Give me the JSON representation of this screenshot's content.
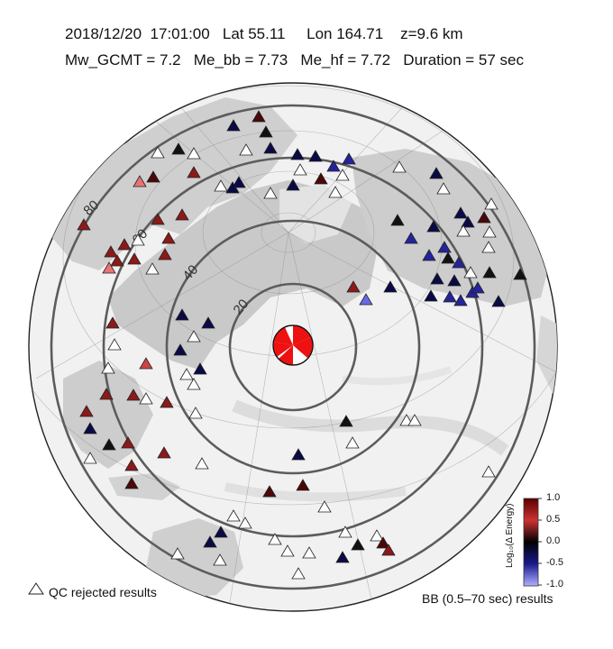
{
  "header": {
    "line1": "2018/12/20  17:01:00   Lat 55.11     Lon 164.71    z=9.6 km",
    "line2": "Mw_GCMT = 7.2   Me_bb = 7.73   Me_hf = 7.72   Duration = 57 sec"
  },
  "map": {
    "range_labels": [
      "20",
      "40",
      "60",
      "80"
    ],
    "station_symbol": "triangle",
    "mechanism_colors": {
      "compression": "#ee1111",
      "tension": "#ffffff"
    },
    "marker_colors": {
      "strong_red": "#c0392b",
      "red": "#8b1a1a",
      "dark_red": "#4a0808",
      "black": "#111111",
      "dark_blue": "#0a0a45",
      "blue": "#24249a",
      "light_blue": "#6a6ae6",
      "pink": "#e97373",
      "rejected": "#ffffff"
    }
  },
  "legend": {
    "qc_label": "QC rejected results",
    "bb_label": "BB (0.5–70 sec) results"
  },
  "colorbar": {
    "title": "Log₁₀(Δ Energy)",
    "ticks": [
      "1.0",
      "0.5",
      "0.0",
      "-0.5",
      "-1.0"
    ],
    "range": [
      -1.0,
      1.0
    ]
  }
}
